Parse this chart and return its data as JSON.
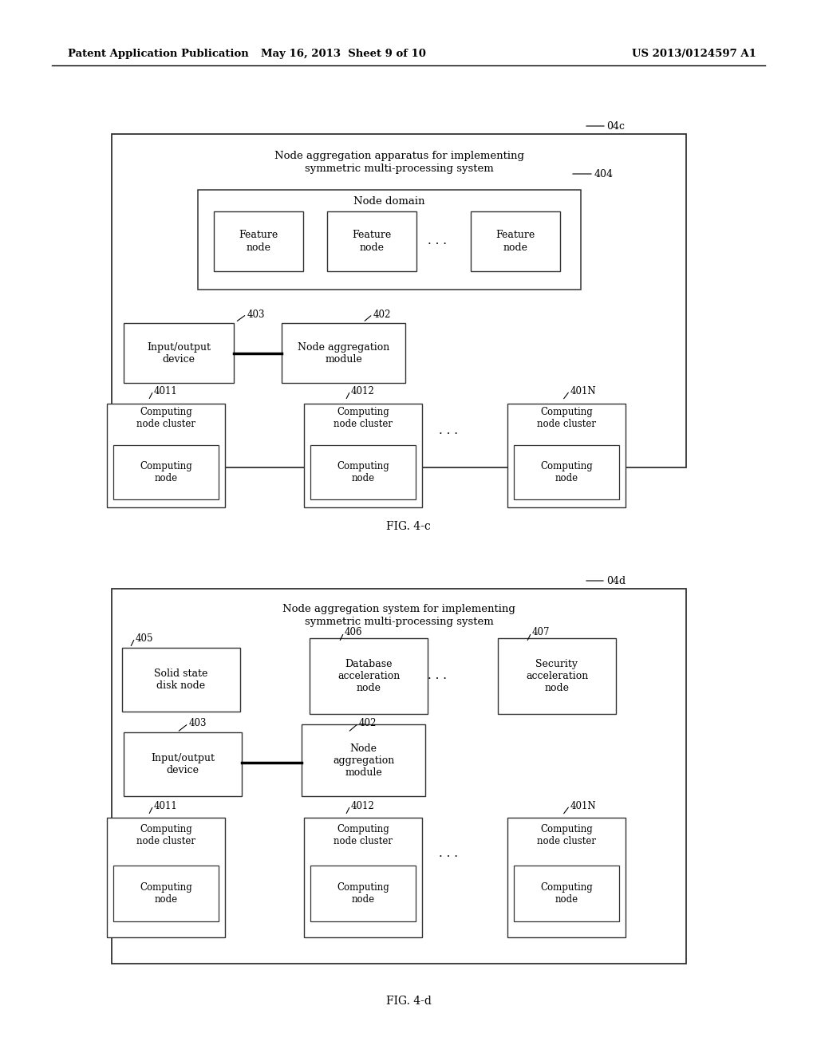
{
  "bg_color": "#ffffff",
  "header_left": "Patent Application Publication",
  "header_mid": "May 16, 2013  Sheet 9 of 10",
  "header_right": "US 2013/0124597 A1",
  "fig4c_label": "FIG. 4-c",
  "fig4d_label": "FIG. 4-d"
}
